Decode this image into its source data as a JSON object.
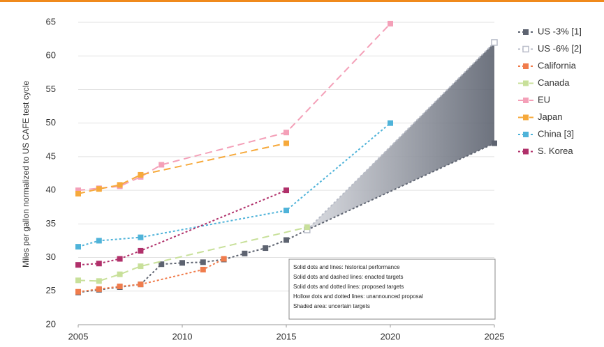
{
  "chart_data": {
    "type": "line",
    "ylabel": "Miles per gallon normalized to US CAFE test cycle",
    "xlim": [
      2005,
      2025
    ],
    "xticks": [
      2005,
      2010,
      2015,
      2020,
      2025
    ],
    "ylim": [
      20,
      65
    ],
    "yticks": [
      20,
      25,
      30,
      35,
      40,
      45,
      50,
      55,
      60,
      65
    ],
    "grid": true,
    "legend": "right",
    "series": [
      {
        "name": "US -3% [1]",
        "color": "#5d6370",
        "dash": "3 3",
        "x": [
          2005,
          2006,
          2007,
          2008,
          2009,
          2010,
          2011,
          2012,
          2013,
          2014,
          2015,
          2016,
          2025
        ],
        "values": [
          24.8,
          25.2,
          25.6,
          26.0,
          29.0,
          29.2,
          29.3,
          29.7,
          30.6,
          31.4,
          32.6,
          34.1,
          47.0
        ]
      },
      {
        "name": "US -6% [2]",
        "color": "#b8bcc8",
        "dash": "3 3",
        "hollow": true,
        "x": [
          2016,
          2025
        ],
        "values": [
          34.1,
          62.0
        ]
      },
      {
        "name": "California",
        "color": "#f07c4c",
        "dash": "3 3",
        "x": [
          2005,
          2006,
          2007,
          2008,
          2011,
          2012
        ],
        "values": [
          24.9,
          25.3,
          25.7,
          26.0,
          28.2,
          29.8
        ]
      },
      {
        "name": "Canada",
        "color": "#c8e09a",
        "dash": "10 6",
        "x": [
          2005,
          2006,
          2007,
          2008,
          2016
        ],
        "values": [
          26.6,
          26.5,
          27.5,
          28.7,
          34.5
        ]
      },
      {
        "name": "EU",
        "color": "#f4a0b8",
        "dash": "10 6",
        "x": [
          2005,
          2006,
          2007,
          2008,
          2009,
          2015,
          2020
        ],
        "values": [
          40.0,
          40.3,
          40.6,
          42.0,
          43.8,
          48.6,
          64.8
        ]
      },
      {
        "name": "Japan",
        "color": "#f6a93b",
        "dash": "10 6",
        "x": [
          2005,
          2006,
          2007,
          2008,
          2015
        ],
        "values": [
          39.5,
          40.2,
          40.8,
          42.3,
          47.0
        ]
      },
      {
        "name": "China [3]",
        "color": "#4fb3d9",
        "dash": "3 3",
        "x": [
          2005,
          2006,
          2008,
          2015,
          2020
        ],
        "values": [
          31.6,
          32.5,
          33.0,
          37.0,
          50.0
        ]
      },
      {
        "name": "S. Korea",
        "color": "#b0306a",
        "dash": "3 3",
        "x": [
          2005,
          2006,
          2007,
          2008,
          2015
        ],
        "values": [
          28.9,
          29.1,
          29.8,
          31.0,
          40.0
        ]
      }
    ],
    "annotations": [
      "Solid dots and lines: historical performance",
      "Solid dots and dashed lines: enacted targets",
      "Solid dots and dotted lines: proposed targets",
      "Hollow dots and dotted lines: unannounced proposal",
      "Shaded area: uncertain targets"
    ]
  }
}
